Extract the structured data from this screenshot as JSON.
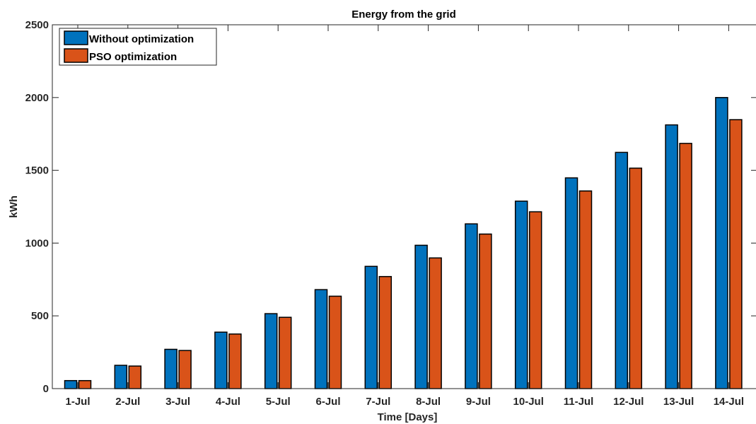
{
  "chart_data": {
    "type": "bar",
    "title": "Energy from the grid",
    "xlabel": "Time [Days]",
    "ylabel": "kWh",
    "categories": [
      "1-Jul",
      "2-Jul",
      "3-Jul",
      "4-Jul",
      "5-Jul",
      "6-Jul",
      "7-Jul",
      "8-Jul",
      "9-Jul",
      "10-Jul",
      "11-Jul",
      "12-Jul",
      "13-Jul",
      "14-Jul"
    ],
    "ylim": [
      0,
      2500
    ],
    "yticks": [
      0,
      500,
      1000,
      1500,
      2000,
      2500
    ],
    "grid": false,
    "legend_position": "top-left",
    "series": [
      {
        "name": "Without optimization",
        "color": "#0072BD",
        "values": [
          55,
          160,
          270,
          388,
          515,
          680,
          840,
          985,
          1132,
          1288,
          1448,
          1623,
          1812,
          2000
        ]
      },
      {
        "name": "PSO optimization",
        "color": "#D95319",
        "values": [
          55,
          155,
          262,
          375,
          490,
          635,
          770,
          898,
          1062,
          1215,
          1358,
          1515,
          1685,
          1848
        ]
      }
    ]
  }
}
